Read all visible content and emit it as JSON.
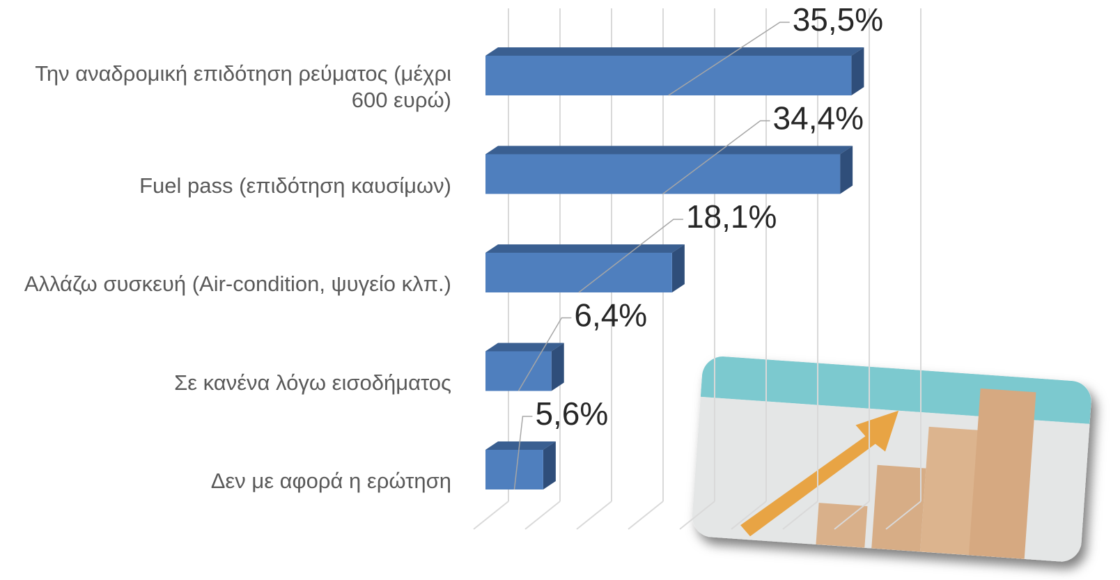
{
  "chart_data": {
    "type": "bar3d",
    "categories": [
      "Την αναδρομική επιδότηση ρεύματος (μέχρι 600 ευρώ)",
      "Fuel pass (επιδότηση καυσίμων)",
      "Αλλάζω συσκευή (Air-condition, ψυγείο κλπ.)",
      "Σε κανένα λόγω εισοδήματος",
      "Δεν με αφορά η ερώτηση"
    ],
    "values": [
      35.5,
      34.4,
      18.1,
      6.4,
      5.6
    ],
    "value_labels": [
      "35,5%",
      "34,4%",
      "18,1%",
      "6,4%",
      "5,6%"
    ],
    "color": "#4f7fbe",
    "xlim": [
      0,
      40
    ],
    "xticks": [
      0,
      5,
      10,
      15,
      20,
      25,
      30,
      35,
      40
    ],
    "grid": true
  }
}
